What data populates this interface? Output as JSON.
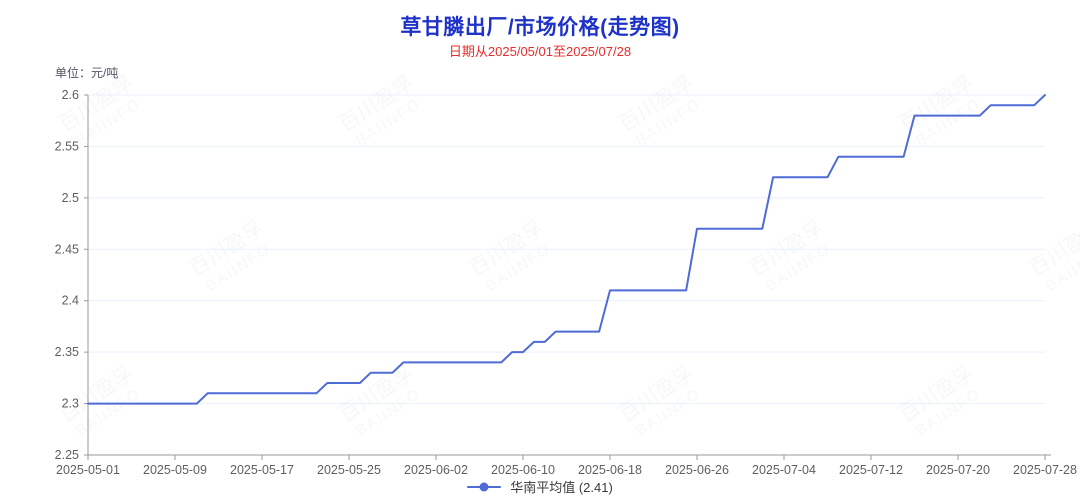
{
  "header": {
    "title": "草甘膦出厂/市场价格(走势图)",
    "subtitle": "日期从2025/05/01至2025/07/28",
    "unit_label": "单位：元/吨"
  },
  "legend": {
    "label": "华南平均值 (2.41)"
  },
  "watermark": {
    "line1": "百川盈孚",
    "line2": "BAIINFO"
  },
  "colors": {
    "title": "#1e32c8",
    "subtitle": "#e82c2c",
    "line": "#4f6bd5",
    "grid": "#e9f1fb",
    "axis": "#999999",
    "tick_text": "#5f5f5f"
  },
  "chart_data": {
    "type": "line",
    "title": "草甘膦出厂/市场价格(走势图)",
    "subtitle": "日期从2025/05/01至2025/07/28",
    "ylabel": "单位：元/吨",
    "legend_position": "bottom",
    "grid": true,
    "x_start_date": "2025-05-01",
    "x_end_date": "2025-07-28",
    "x_tick_interval_days": 8,
    "x_tick_labels": [
      "2025-05-01",
      "2025-05-09",
      "2025-05-17",
      "2025-05-25",
      "2025-06-02",
      "2025-06-10",
      "2025-06-18",
      "2025-06-26",
      "2025-07-04",
      "2025-07-12",
      "2025-07-20",
      "2025-07-28"
    ],
    "ylim": [
      2.25,
      2.6
    ],
    "y_ticks": [
      2.25,
      2.3,
      2.35,
      2.4,
      2.45,
      2.5,
      2.55,
      2.6
    ],
    "series": [
      {
        "name": "华南平均值 (2.41)",
        "color": "#4f6bd5",
        "values": [
          2.3,
          2.3,
          2.3,
          2.3,
          2.3,
          2.3,
          2.3,
          2.3,
          2.3,
          2.3,
          2.3,
          2.31,
          2.31,
          2.31,
          2.31,
          2.31,
          2.31,
          2.31,
          2.31,
          2.31,
          2.31,
          2.31,
          2.32,
          2.32,
          2.32,
          2.32,
          2.33,
          2.33,
          2.33,
          2.34,
          2.34,
          2.34,
          2.34,
          2.34,
          2.34,
          2.34,
          2.34,
          2.34,
          2.34,
          2.35,
          2.35,
          2.36,
          2.36,
          2.37,
          2.37,
          2.37,
          2.37,
          2.37,
          2.41,
          2.41,
          2.41,
          2.41,
          2.41,
          2.41,
          2.41,
          2.41,
          2.47,
          2.47,
          2.47,
          2.47,
          2.47,
          2.47,
          2.47,
          2.52,
          2.52,
          2.52,
          2.52,
          2.52,
          2.52,
          2.54,
          2.54,
          2.54,
          2.54,
          2.54,
          2.54,
          2.54,
          2.58,
          2.58,
          2.58,
          2.58,
          2.58,
          2.58,
          2.58,
          2.59,
          2.59,
          2.59,
          2.59,
          2.59,
          2.6
        ]
      }
    ]
  }
}
